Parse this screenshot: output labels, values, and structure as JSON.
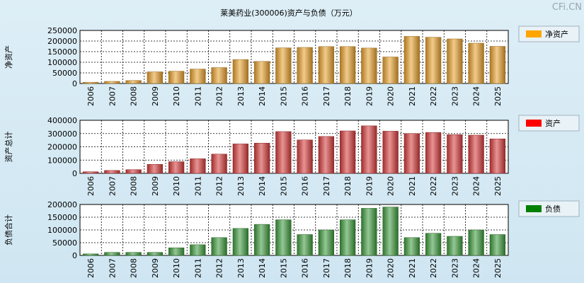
{
  "title": "莱美药业(300006)资产与负债（万元）",
  "watermark": "CFi.CN",
  "chart_data": [
    {
      "type": "bar",
      "ylabel": "净资产",
      "legend": "净资产",
      "legend_color": "#ffa500",
      "bar_color": "#e8a02c",
      "ylim": [
        0,
        250000
      ],
      "yticks": [
        "0",
        "50000",
        "100000",
        "150000",
        "200000",
        "250000"
      ],
      "categories": [
        "2006",
        "2007",
        "2008",
        "2009",
        "2010",
        "2011",
        "2012",
        "2013",
        "2014",
        "2015",
        "2016",
        "2017",
        "2018",
        "2019",
        "2020",
        "2021",
        "2022",
        "2023",
        "2024",
        "2025"
      ],
      "values": [
        6000,
        10000,
        14000,
        55000,
        58000,
        68000,
        75000,
        113000,
        104000,
        168000,
        170000,
        174000,
        174000,
        167000,
        125000,
        222000,
        218000,
        210000,
        190000,
        175000
      ]
    },
    {
      "type": "bar",
      "ylabel": "资产总计",
      "legend": "资产",
      "legend_color": "#ff0000",
      "bar_color": "#d63a3a",
      "ylim": [
        0,
        400000
      ],
      "yticks": [
        "0",
        "100000",
        "200000",
        "300000",
        "400000"
      ],
      "categories": [
        "2006",
        "2007",
        "2008",
        "2009",
        "2010",
        "2011",
        "2012",
        "2013",
        "2014",
        "2015",
        "2016",
        "2017",
        "2018",
        "2019",
        "2020",
        "2021",
        "2022",
        "2023",
        "2024",
        "2025"
      ],
      "values": [
        12000,
        22000,
        28000,
        68000,
        88000,
        110000,
        145000,
        222000,
        228000,
        315000,
        252000,
        278000,
        320000,
        358000,
        318000,
        300000,
        308000,
        292000,
        288000,
        260000
      ]
    },
    {
      "type": "bar",
      "ylabel": "负债合计",
      "legend": "负债",
      "legend_color": "#008000",
      "bar_color": "#3c9a3c",
      "ylim": [
        0,
        200000
      ],
      "yticks": [
        "0",
        "50000",
        "100000",
        "150000",
        "200000"
      ],
      "categories": [
        "2006",
        "2007",
        "2008",
        "2009",
        "2010",
        "2011",
        "2012",
        "2013",
        "2014",
        "2015",
        "2016",
        "2017",
        "2018",
        "2019",
        "2020",
        "2021",
        "2022",
        "2023",
        "2024",
        "2025"
      ],
      "values": [
        6000,
        12000,
        12000,
        12000,
        30000,
        42000,
        70000,
        106000,
        122000,
        140000,
        82000,
        100000,
        140000,
        185000,
        190000,
        70000,
        87000,
        75000,
        100000,
        82000
      ]
    }
  ]
}
